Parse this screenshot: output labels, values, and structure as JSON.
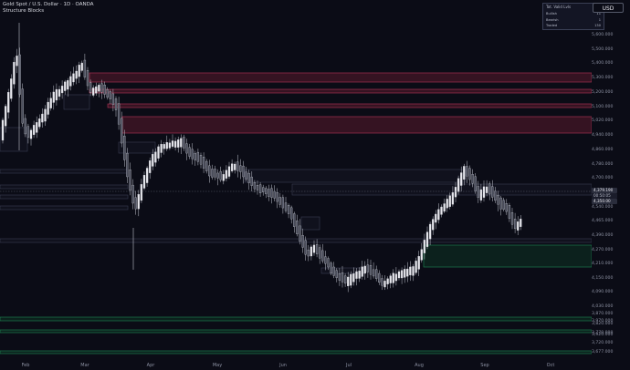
{
  "header": {
    "symbol_line": "Gold Spot / U.S. Dollar · 1D · OANDA",
    "indicator_name": "Structure Blocks"
  },
  "currency_button": "USD",
  "stats_table": {
    "rows": [
      {
        "label": "Tot. Valid Lvls",
        "value": "12"
      },
      {
        "label": "Bullish",
        "value": "11"
      },
      {
        "label": "Bearish",
        "value": "1"
      },
      {
        "label": "Traded",
        "value": "130"
      }
    ]
  },
  "price_axis": {
    "labels": [
      "5,600.000",
      "5,500.000",
      "5,400.000",
      "5,300.000",
      "5,200.000",
      "5,100.000",
      "5,020.000",
      "4,940.000",
      "4,860.000",
      "4,780.000",
      "4,700.000",
      "4,620.000",
      "4,540.000",
      "4,465.000",
      "4,390.000",
      "4,270.000",
      "4,210.000",
      "4,150.000",
      "4,090.000",
      "4,030.000",
      "3,970.000",
      "3,920.000",
      "3,870.000",
      "3,820.000",
      "3,770.000",
      "3,720.000",
      "3,677.000"
    ],
    "current_price_label": "4,379.190",
    "current_price_sub": "00:50:05",
    "prev_price_label": "4,350.00"
  },
  "time_axis": {
    "labels": [
      "Feb",
      "Mar",
      "Apr",
      "May",
      "Jun",
      "Jul",
      "Aug",
      "Sep",
      "Oct"
    ]
  },
  "colors": {
    "background": "#0b0c16",
    "bull_candle": "#e8e8ee",
    "bear_candle": "#4a4d5c",
    "bear_zone_fill": "#5a1a2e",
    "bear_zone_border": "#b8365a",
    "bull_zone_fill": "#0f3324",
    "bull_zone_border": "#1f8a55",
    "neutral_zone_fill": "#1a1c2a",
    "neutral_zone_border": "#3a3e52"
  }
}
